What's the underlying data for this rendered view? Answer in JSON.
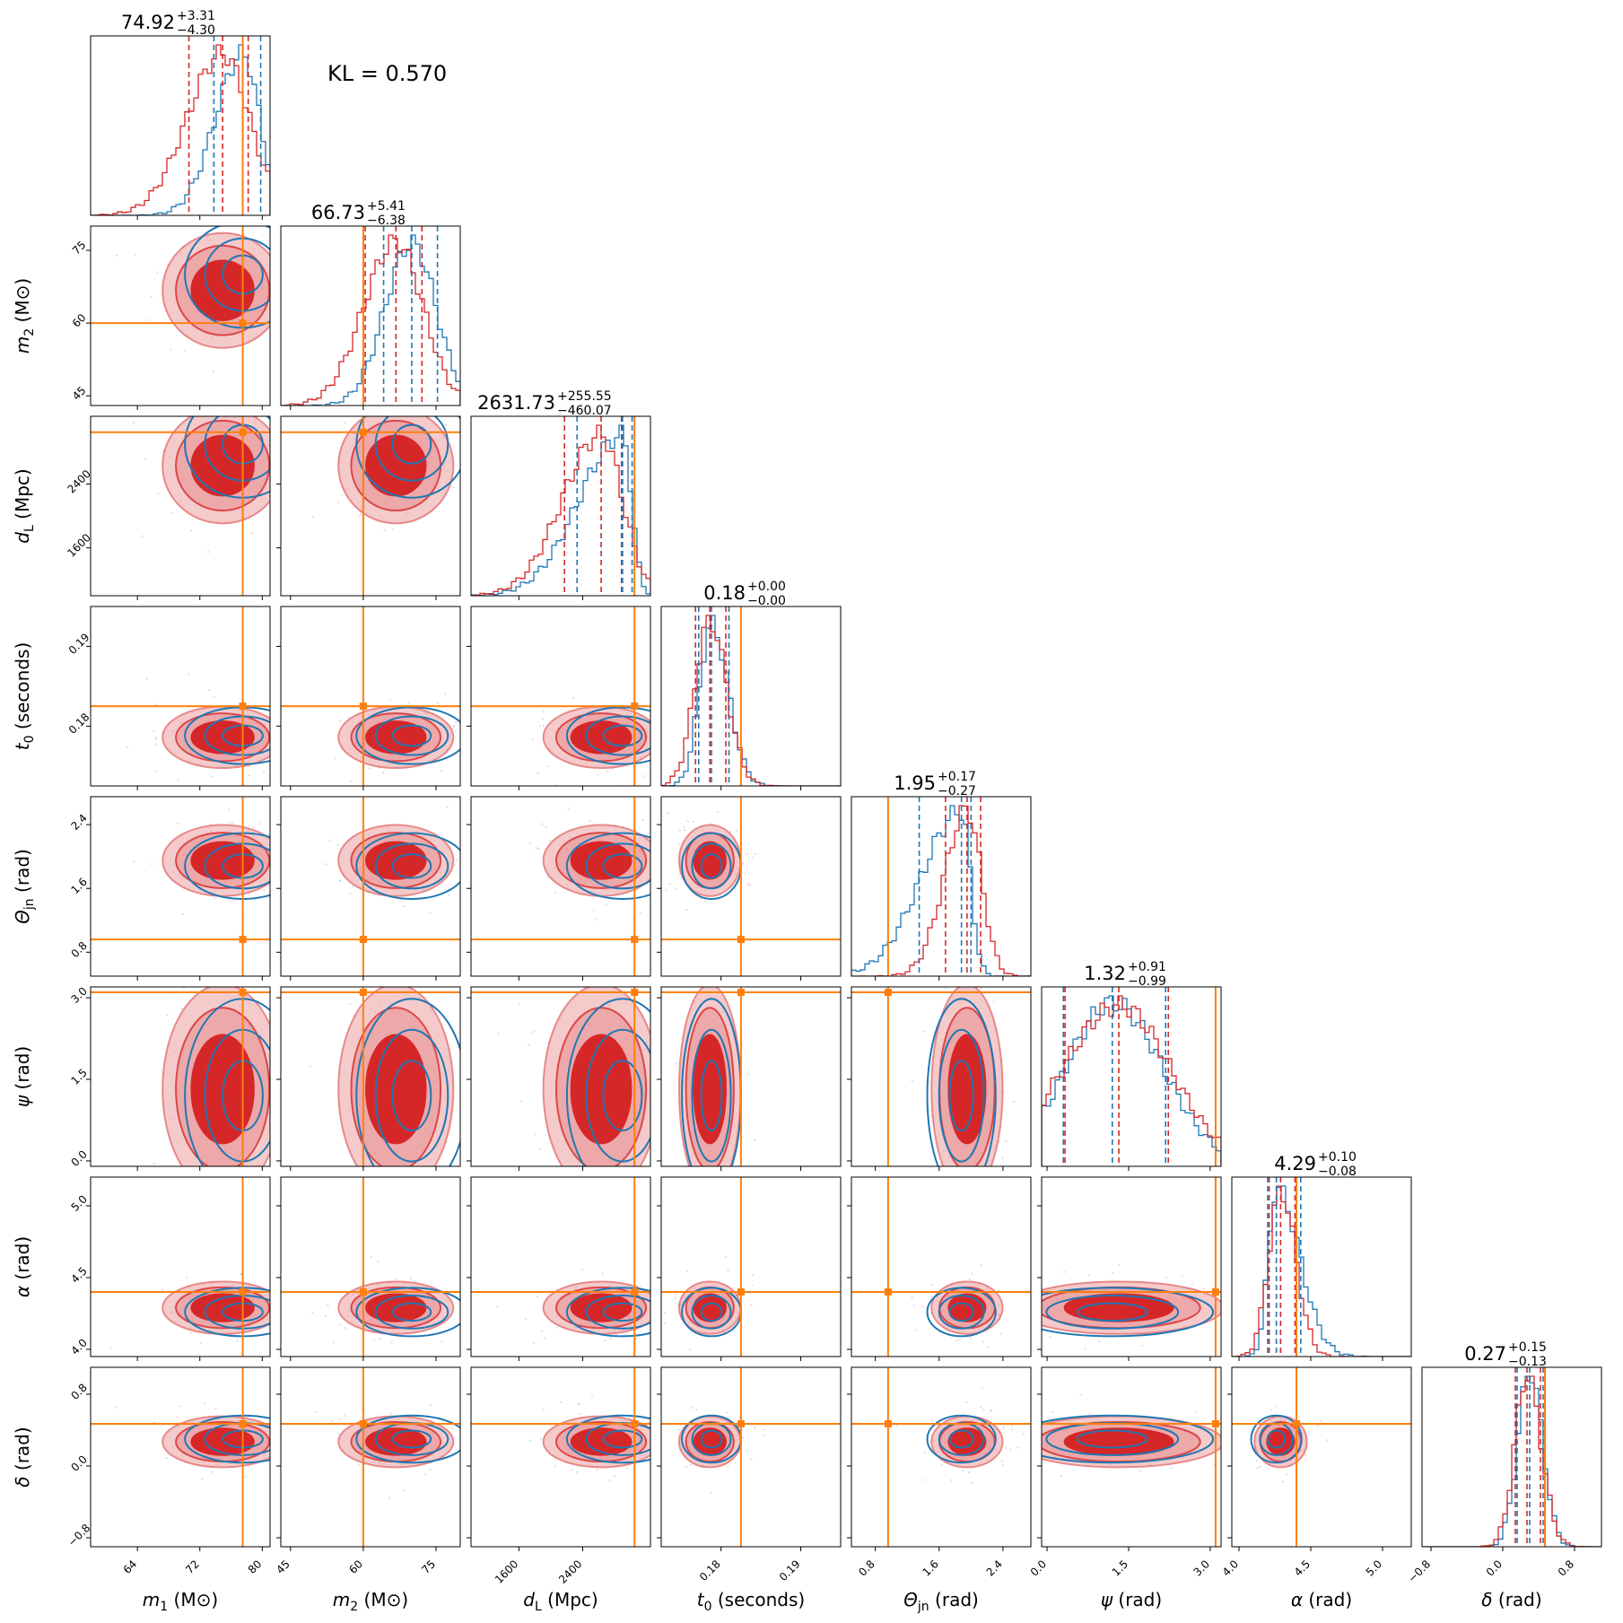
{
  "kl_label": "KL = 0.570",
  "colors": {
    "posterior_a": "#d62728",
    "posterior_b": "#1f77b4",
    "truth": "#ff7f0e",
    "fill_inner": "#d62728",
    "fill_outer": "#eca0a1"
  },
  "chart_data": {
    "type": "corner",
    "parameters": [
      {
        "id": "m1",
        "symbol": "m",
        "sub": "1",
        "unit": "(M⊙)",
        "range": [
          58,
          81
        ],
        "ticks": [
          64,
          72,
          80
        ],
        "tick_labels": [
          "64",
          "72",
          "80"
        ],
        "truth": 77.5,
        "title_value": "74.92",
        "title_plus": "+3.31",
        "title_minus": "−4.30",
        "quantiles_a": [
          70.6,
          74.92,
          78.2
        ],
        "quantiles_b": [
          73.8,
          77.5,
          79.8
        ]
      },
      {
        "id": "m2",
        "symbol": "m",
        "sub": "2",
        "unit": "(M⊙)",
        "range": [
          43,
          80
        ],
        "ticks": [
          45,
          60,
          75
        ],
        "tick_labels": [
          "45",
          "60",
          "75"
        ],
        "truth": 60,
        "title_value": "66.73",
        "title_plus": "+5.41",
        "title_minus": "−6.38",
        "quantiles_a": [
          60.4,
          66.73,
          72.1
        ],
        "quantiles_b": [
          64.2,
          70.0,
          75.3
        ]
      },
      {
        "id": "dL",
        "symbol": "d",
        "sub": "L",
        "unit": "(Mpc)",
        "range": [
          1000,
          3250
        ],
        "ticks": [
          1600,
          2400
        ],
        "tick_labels": [
          "1600",
          "2400"
        ],
        "truth": 3050,
        "title_value": "2631.73",
        "title_plus": "+255.55",
        "title_minus": "−460.07",
        "quantiles_a": [
          2171.7,
          2631.73,
          2887.3
        ],
        "quantiles_b": [
          2330,
          2900,
          3020
        ]
      },
      {
        "id": "t0",
        "symbol": "t",
        "sub": "0",
        "unit": "(seconds)",
        "range": [
          0.1725,
          0.195
        ],
        "ticks": [
          0.18,
          0.19
        ],
        "tick_labels": [
          "0.18",
          "0.19"
        ],
        "truth": 0.1825,
        "title_value": "0.18",
        "title_plus": "+0.00",
        "title_minus": "−0.00",
        "quantiles_a": [
          0.1768,
          0.1786,
          0.1806
        ],
        "quantiles_b": [
          0.1772,
          0.1788,
          0.181
        ]
      },
      {
        "id": "theta_jn",
        "symbol": "Θ",
        "sub": "jn",
        "unit": "(rad)",
        "range": [
          0.5,
          2.75
        ],
        "ticks": [
          0.8,
          1.6,
          2.4
        ],
        "tick_labels": [
          "0.8",
          "1.6",
          "2.4"
        ],
        "truth": 0.96,
        "title_value": "1.95",
        "title_plus": "+0.17",
        "title_minus": "−0.27",
        "quantiles_a": [
          1.68,
          1.95,
          2.12
        ],
        "quantiles_b": [
          1.35,
          1.88,
          2.0
        ]
      },
      {
        "id": "psi",
        "symbol": "ψ",
        "sub": "",
        "unit": "(rad)",
        "range": [
          -0.1,
          3.2
        ],
        "ticks": [
          0.0,
          1.5,
          3.0
        ],
        "tick_labels": [
          "0.0",
          "1.5",
          "3.0"
        ],
        "truth": 3.1,
        "title_value": "1.32",
        "title_plus": "+0.91",
        "title_minus": "−0.99",
        "quantiles_a": [
          0.33,
          1.32,
          2.23
        ],
        "quantiles_b": [
          0.3,
          1.2,
          2.18
        ]
      },
      {
        "id": "alpha",
        "symbol": "α",
        "sub": "",
        "unit": "(rad)",
        "range": [
          3.95,
          5.2
        ],
        "ticks": [
          4.0,
          4.5,
          5.0
        ],
        "tick_labels": [
          "4.0",
          "4.5",
          "5.0"
        ],
        "truth": 4.4,
        "title_value": "4.29",
        "title_plus": "+0.10",
        "title_minus": "−0.08",
        "quantiles_a": [
          4.21,
          4.29,
          4.39
        ],
        "quantiles_b": [
          4.2,
          4.26,
          4.43
        ]
      },
      {
        "id": "delta",
        "symbol": "δ",
        "sub": "",
        "unit": "(rad)",
        "range": [
          -0.9,
          1.1
        ],
        "ticks": [
          -0.8,
          0.0,
          0.8
        ],
        "tick_labels": [
          "−0.8",
          "0.0",
          "0.8"
        ],
        "truth": 0.47,
        "title_value": "0.27",
        "title_plus": "+0.15",
        "title_minus": "−0.13",
        "quantiles_a": [
          0.14,
          0.27,
          0.42
        ],
        "quantiles_b": [
          0.16,
          0.3,
          0.45
        ]
      }
    ]
  }
}
